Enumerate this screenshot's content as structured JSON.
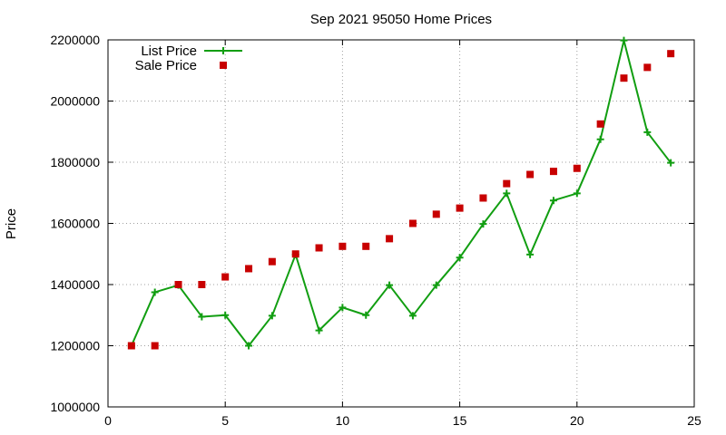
{
  "chart_data": {
    "type": "line",
    "title": "Sep 2021 95050 Home Prices",
    "xlabel": "",
    "ylabel": "Price",
    "xlim": [
      0,
      25
    ],
    "ylim": [
      1000000,
      2200000
    ],
    "x_ticks": [
      "0",
      "5",
      "10",
      "15",
      "20",
      "25"
    ],
    "y_ticks": [
      "1000000",
      "1200000",
      "1400000",
      "1600000",
      "1800000",
      "2000000",
      "2200000"
    ],
    "grid": true,
    "legend_position": "top-left",
    "x": [
      1,
      2,
      3,
      4,
      5,
      6,
      7,
      8,
      9,
      10,
      11,
      12,
      13,
      14,
      15,
      16,
      17,
      18,
      19,
      20,
      21,
      22,
      23,
      24
    ],
    "series": [
      {
        "name": "List Price",
        "style": "line-with-plus-markers",
        "color": "#119e11",
        "values": [
          1200000,
          1375000,
          1398000,
          1295000,
          1300000,
          1200000,
          1298000,
          1498000,
          1250000,
          1325000,
          1300000,
          1398000,
          1298000,
          1398000,
          1488000,
          1598000,
          1698000,
          1498000,
          1675000,
          1698000,
          1875000,
          2198000,
          1898000,
          1798000
        ]
      },
      {
        "name": "Sale Price",
        "style": "square-markers",
        "color": "#c80000",
        "values": [
          1200000,
          1200000,
          1400000,
          1400000,
          1425000,
          1452000,
          1475000,
          1500000,
          1520000,
          1525000,
          1525000,
          1550000,
          1600000,
          1630000,
          1650000,
          1683000,
          1730000,
          1760000,
          1770000,
          1780000,
          1925000,
          2075000,
          2110000,
          2155000
        ]
      }
    ]
  }
}
